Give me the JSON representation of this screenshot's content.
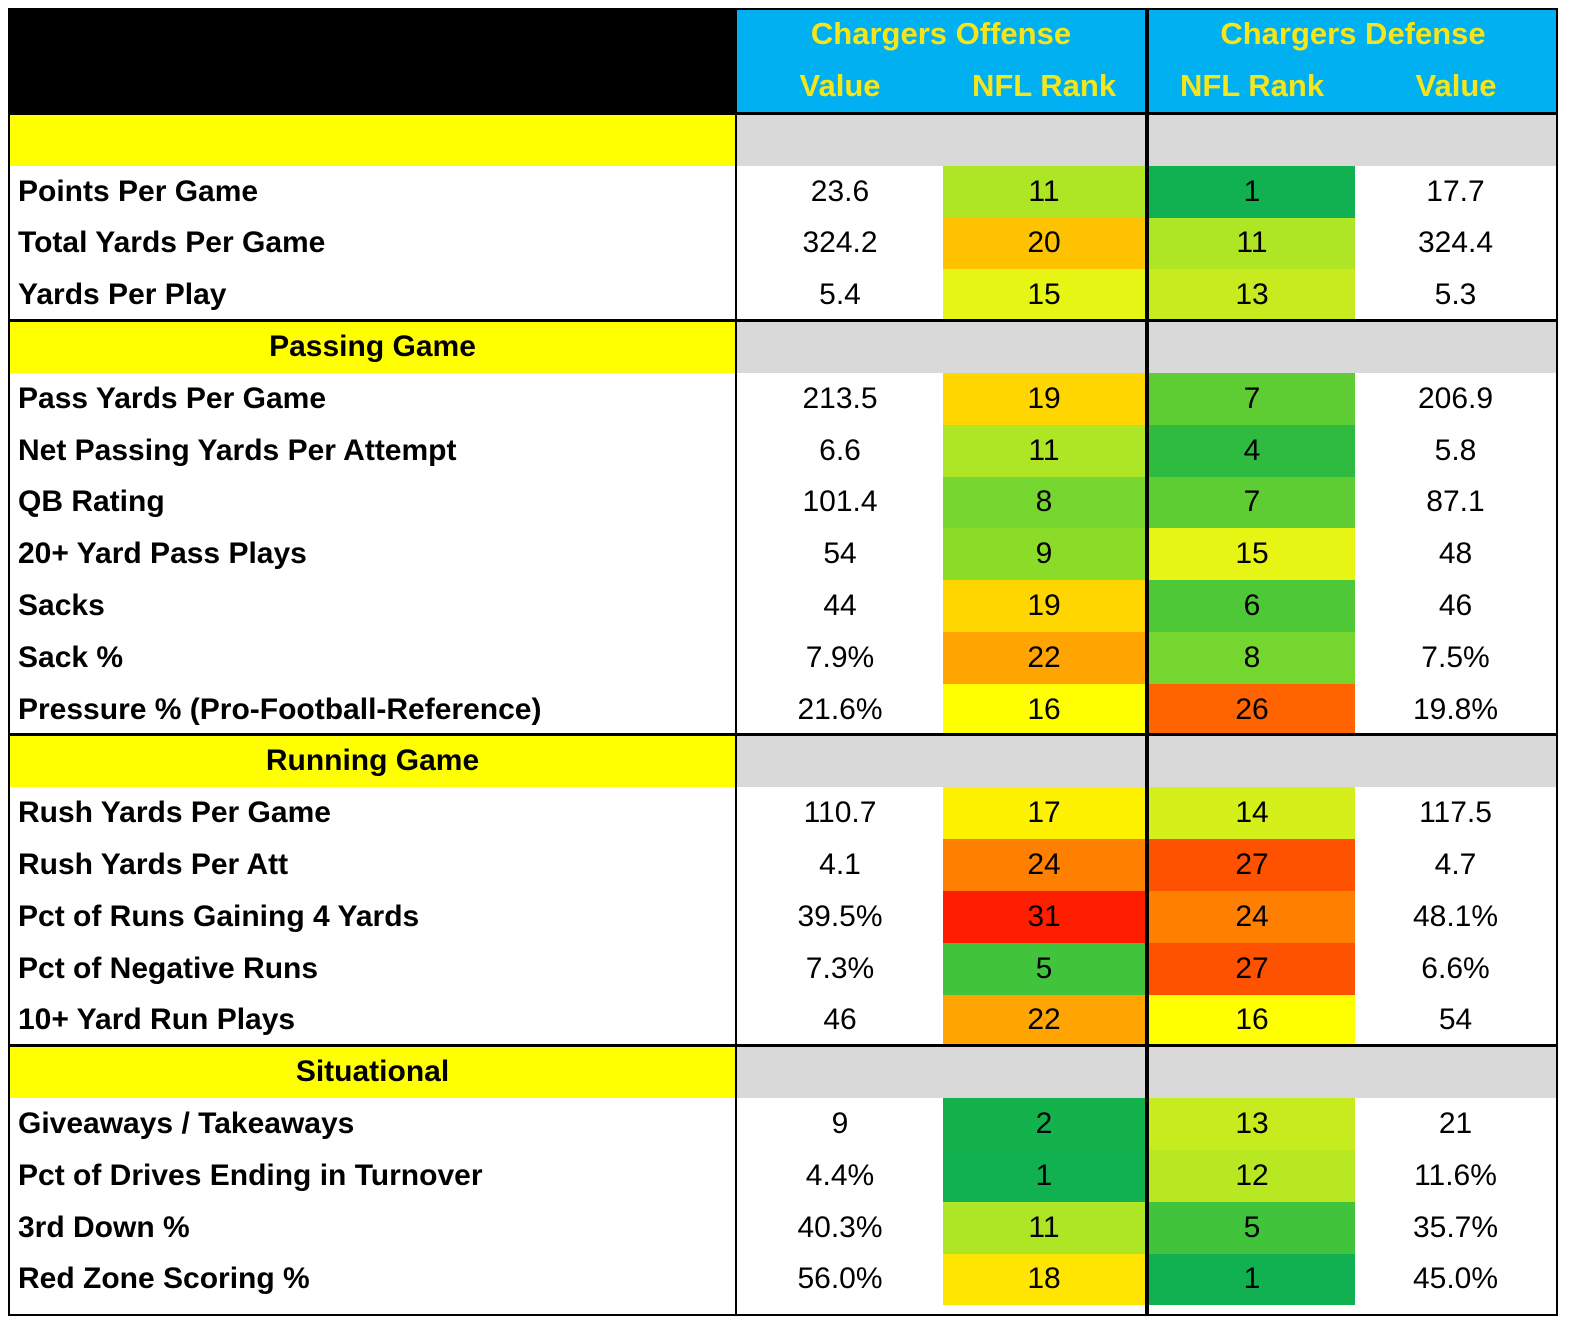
{
  "header": {
    "offense_title": "Chargers Offense",
    "defense_title": "Chargers Defense",
    "col_off_value": "Value",
    "col_off_rank": "NFL Rank",
    "col_def_rank": "NFL Rank",
    "col_def_value": "Value"
  },
  "colors": {
    "header_bg": "#00b0f0",
    "header_text": "#f5e51a",
    "section_bg": "#ffff00",
    "section_fill": "#d9d9d9",
    "rank_scale": {
      "1": "#11b152",
      "2": "#13b24d",
      "4": "#2fbb40",
      "5": "#42c33c",
      "6": "#4fc838",
      "7": "#5ecd33",
      "8": "#74d62e",
      "9": "#8bdb29",
      "11": "#aee524",
      "12": "#b8e822",
      "13": "#c6eb1f",
      "14": "#d4ef1a",
      "15": "#e6f514",
      "16": "#ffff00",
      "17": "#fff200",
      "18": "#ffe500",
      "19": "#ffd600",
      "20": "#ffc200",
      "22": "#ffa400",
      "24": "#ff8000",
      "26": "#ff6400",
      "27": "#ff5200",
      "31": "#ff1d00"
    }
  },
  "rows": [
    {
      "type": "section",
      "label": ""
    },
    {
      "type": "data",
      "label": "Points Per Game",
      "off_value": "23.6",
      "off_rank": "11",
      "def_rank": "1",
      "def_value": "17.7"
    },
    {
      "type": "data",
      "label": "Total Yards Per Game",
      "off_value": "324.2",
      "off_rank": "20",
      "def_rank": "11",
      "def_value": "324.4"
    },
    {
      "type": "data",
      "label": "Yards Per Play",
      "off_value": "5.4",
      "off_rank": "15",
      "def_rank": "13",
      "def_value": "5.3"
    },
    {
      "type": "section",
      "label": "Passing Game"
    },
    {
      "type": "data",
      "label": "Pass Yards Per Game",
      "off_value": "213.5",
      "off_rank": "19",
      "def_rank": "7",
      "def_value": "206.9"
    },
    {
      "type": "data",
      "label": "Net Passing Yards Per Attempt",
      "off_value": "6.6",
      "off_rank": "11",
      "def_rank": "4",
      "def_value": "5.8"
    },
    {
      "type": "data",
      "label": "QB Rating",
      "off_value": "101.4",
      "off_rank": "8",
      "def_rank": "7",
      "def_value": "87.1"
    },
    {
      "type": "data",
      "label": "20+ Yard Pass Plays",
      "off_value": "54",
      "off_rank": "9",
      "def_rank": "15",
      "def_value": "48"
    },
    {
      "type": "data",
      "label": "Sacks",
      "off_value": "44",
      "off_rank": "19",
      "def_rank": "6",
      "def_value": "46"
    },
    {
      "type": "data",
      "label": "Sack %",
      "off_value": "7.9%",
      "off_rank": "22",
      "def_rank": "8",
      "def_value": "7.5%"
    },
    {
      "type": "data",
      "label": "Pressure % (Pro-Football-Reference)",
      "off_value": "21.6%",
      "off_rank": "16",
      "def_rank": "26",
      "def_value": "19.8%"
    },
    {
      "type": "section",
      "label": "Running Game"
    },
    {
      "type": "data",
      "label": "Rush Yards Per Game",
      "off_value": "110.7",
      "off_rank": "17",
      "def_rank": "14",
      "def_value": "117.5"
    },
    {
      "type": "data",
      "label": "Rush Yards Per Att",
      "off_value": "4.1",
      "off_rank": "24",
      "def_rank": "27",
      "def_value": "4.7"
    },
    {
      "type": "data",
      "label": "Pct of Runs Gaining 4 Yards",
      "off_value": "39.5%",
      "off_rank": "31",
      "def_rank": "24",
      "def_value": "48.1%"
    },
    {
      "type": "data",
      "label": "Pct of Negative Runs",
      "off_value": "7.3%",
      "off_rank": "5",
      "def_rank": "27",
      "def_value": "6.6%"
    },
    {
      "type": "data",
      "label": "10+ Yard Run Plays",
      "off_value": "46",
      "off_rank": "22",
      "def_rank": "16",
      "def_value": "54"
    },
    {
      "type": "section",
      "label": "Situational"
    },
    {
      "type": "data",
      "label": "Giveaways / Takeaways",
      "off_value": "9",
      "off_rank": "2",
      "def_rank": "13",
      "def_value": "21"
    },
    {
      "type": "data",
      "label": "Pct of Drives Ending in Turnover",
      "off_value": "4.4%",
      "off_rank": "1",
      "def_rank": "12",
      "def_value": "11.6%"
    },
    {
      "type": "data",
      "label": "3rd Down %",
      "off_value": "40.3%",
      "off_rank": "11",
      "def_rank": "5",
      "def_value": "35.7%"
    },
    {
      "type": "data",
      "label": "Red Zone Scoring %",
      "off_value": "56.0%",
      "off_rank": "18",
      "def_rank": "1",
      "def_value": "45.0%"
    }
  ]
}
